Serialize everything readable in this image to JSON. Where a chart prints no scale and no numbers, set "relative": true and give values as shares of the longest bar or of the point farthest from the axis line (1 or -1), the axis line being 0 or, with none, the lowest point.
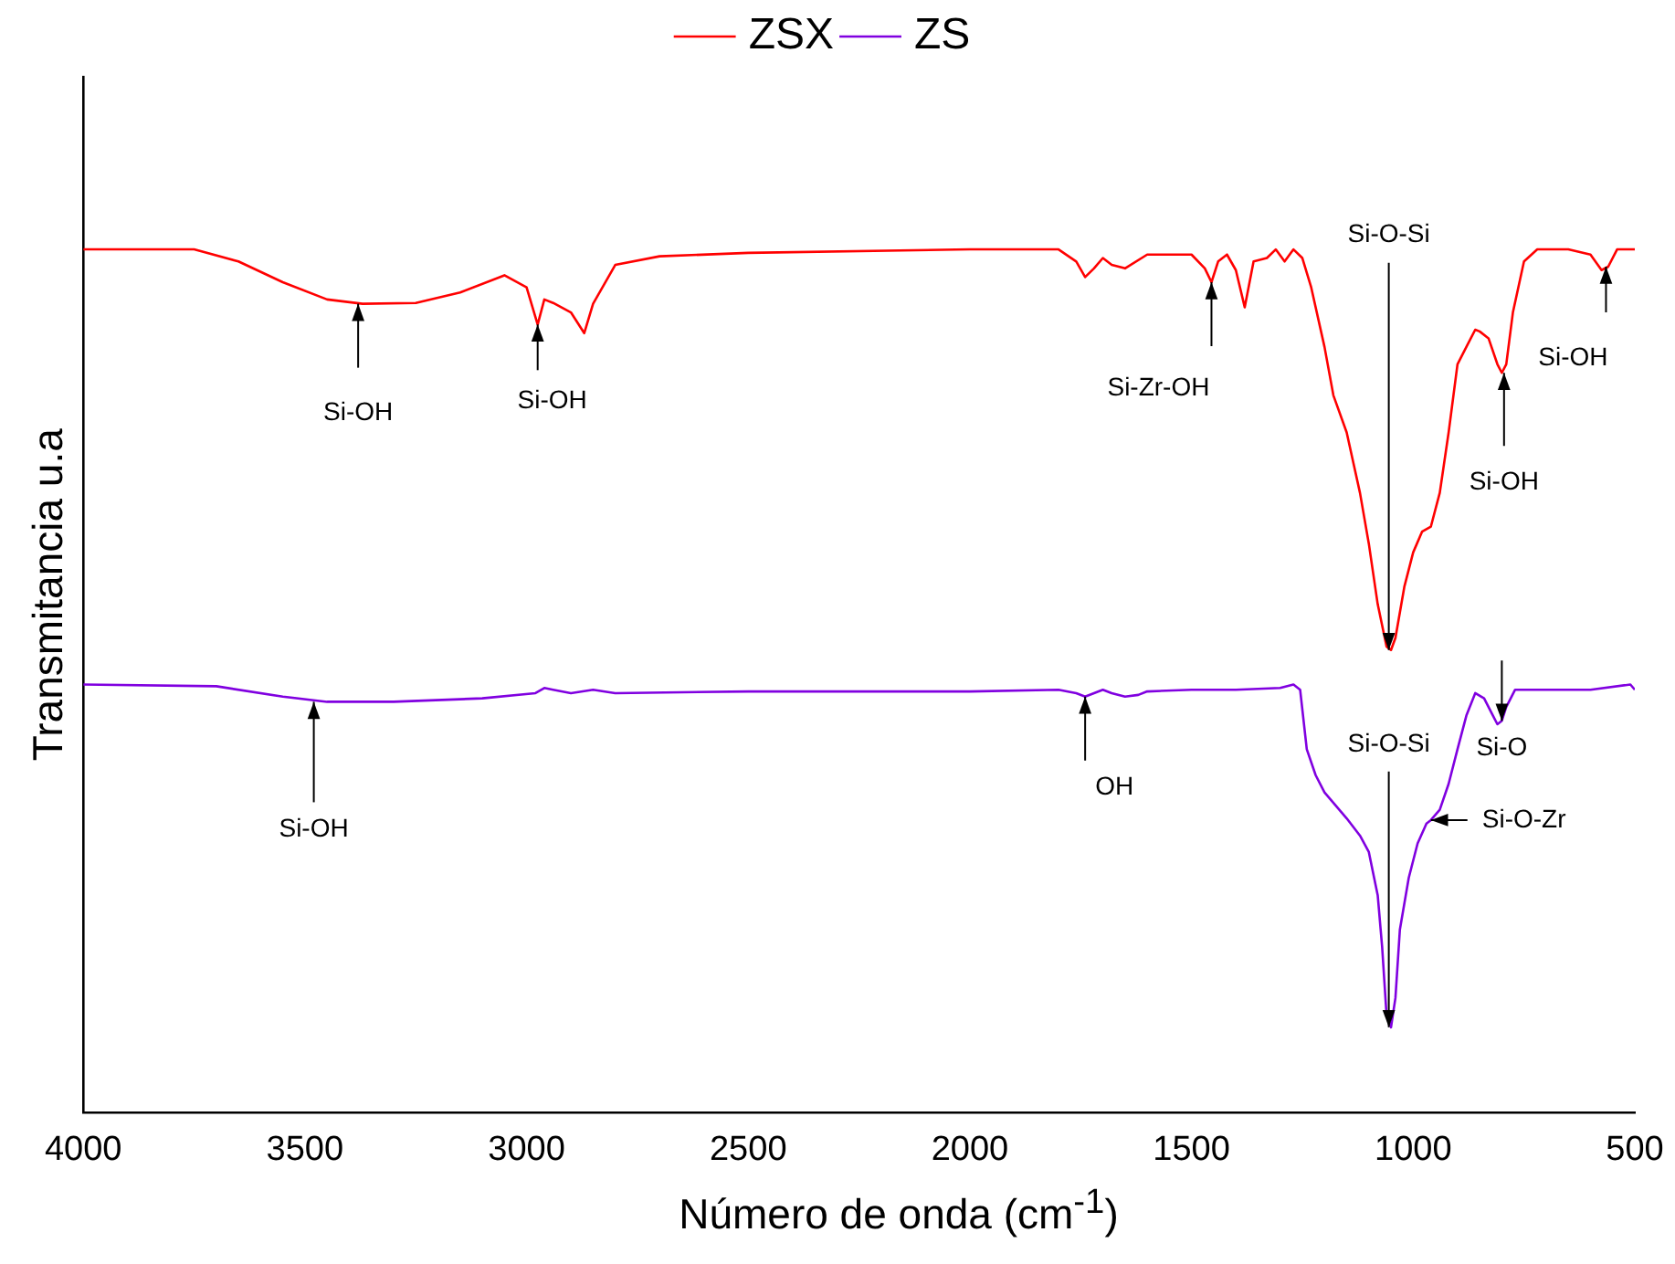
{
  "chart_data": {
    "type": "line",
    "xlabel": "Número de onda (cm$^{-1}$)",
    "ylabel": "Transmitancia u.a",
    "relative": true,
    "xlim": [
      4000,
      500
    ],
    "xticks": [
      4000,
      3500,
      3000,
      2500,
      2000,
      1500,
      1000,
      500
    ],
    "legend": "top",
    "grid": false,
    "marker": "none",
    "line_style": "solid",
    "series": [
      {
        "name": "ZSX",
        "color": "#ff0000",
        "x": [
          4000,
          3750,
          3650,
          3550,
          3450,
          3370,
          3250,
          3150,
          3050,
          3000,
          2975,
          2960,
          2940,
          2900,
          2870,
          2850,
          2800,
          2700,
          2500,
          2000,
          1800,
          1760,
          1740,
          1720,
          1700,
          1680,
          1650,
          1600,
          1500,
          1470,
          1455,
          1440,
          1420,
          1400,
          1380,
          1360,
          1330,
          1310,
          1290,
          1270,
          1250,
          1230,
          1200,
          1180,
          1150,
          1120,
          1100,
          1080,
          1060,
          1050,
          1040,
          1020,
          1000,
          980,
          960,
          940,
          920,
          900,
          880,
          860,
          850,
          830,
          810,
          800,
          790,
          775,
          750,
          720,
          650,
          600,
          575,
          560,
          540,
          500
        ],
        "values": [
          1.0,
          1.0,
          0.986,
          0.962,
          0.942,
          0.937,
          0.938,
          0.95,
          0.97,
          0.956,
          0.913,
          0.942,
          0.938,
          0.927,
          0.903,
          0.937,
          0.982,
          0.992,
          0.996,
          1.0,
          1.0,
          0.986,
          0.968,
          0.978,
          0.99,
          0.982,
          0.978,
          0.994,
          0.994,
          0.978,
          0.962,
          0.986,
          0.994,
          0.976,
          0.933,
          0.986,
          0.99,
          1.0,
          0.986,
          1.0,
          0.99,
          0.956,
          0.887,
          0.831,
          0.788,
          0.718,
          0.659,
          0.589,
          0.54,
          0.536,
          0.55,
          0.609,
          0.649,
          0.673,
          0.679,
          0.718,
          0.788,
          0.867,
          0.887,
          0.907,
          0.905,
          0.897,
          0.867,
          0.857,
          0.867,
          0.927,
          0.986,
          1.0,
          1.0,
          0.994,
          0.976,
          0.98,
          1.0,
          1.0
        ]
      },
      {
        "name": "ZS",
        "color": "#8000e0",
        "x": [
          4000,
          3700,
          3550,
          3450,
          3300,
          3100,
          2980,
          2960,
          2940,
          2900,
          2850,
          2800,
          2500,
          2000,
          1800,
          1760,
          1740,
          1720,
          1700,
          1680,
          1650,
          1620,
          1600,
          1500,
          1400,
          1300,
          1270,
          1255,
          1240,
          1220,
          1200,
          1150,
          1120,
          1100,
          1080,
          1070,
          1060,
          1050,
          1040,
          1030,
          1010,
          990,
          970,
          960,
          940,
          920,
          900,
          880,
          860,
          840,
          820,
          810,
          800,
          790,
          770,
          700,
          600,
          510,
          500
        ],
        "values": [
          0.496,
          0.494,
          0.482,
          0.476,
          0.476,
          0.48,
          0.486,
          0.492,
          0.49,
          0.486,
          0.49,
          0.486,
          0.488,
          0.488,
          0.49,
          0.486,
          0.482,
          0.486,
          0.49,
          0.486,
          0.482,
          0.484,
          0.488,
          0.49,
          0.49,
          0.492,
          0.496,
          0.49,
          0.421,
          0.391,
          0.371,
          0.341,
          0.321,
          0.302,
          0.252,
          0.192,
          0.113,
          0.099,
          0.133,
          0.212,
          0.272,
          0.312,
          0.335,
          0.339,
          0.351,
          0.381,
          0.421,
          0.46,
          0.486,
          0.48,
          0.46,
          0.45,
          0.454,
          0.47,
          0.49,
          0.49,
          0.49,
          0.496,
          0.49
        ]
      }
    ],
    "annotations": [
      {
        "text": "Si-OH",
        "x": 3380,
        "y": 0.937
      },
      {
        "text": "Si-OH",
        "x": 2975,
        "y": 0.913
      },
      {
        "text": "Si-Zr-OH",
        "x": 1455,
        "y": 0.962
      },
      {
        "text": "Si-O-Si",
        "x": 1055,
        "y": 0.536
      },
      {
        "text": "Si-OH",
        "x": 795,
        "y": 0.857
      },
      {
        "text": "Si-OH",
        "x": 565,
        "y": 0.98
      },
      {
        "text": "Si-OH",
        "x": 3480,
        "y": 0.476
      },
      {
        "text": "OH",
        "x": 1740,
        "y": 0.482
      },
      {
        "text": "Si-O-Si",
        "x": 1055,
        "y": 0.099
      },
      {
        "text": "Si-O",
        "x": 800,
        "y": 0.454
      },
      {
        "text": "Si-O-Zr",
        "x": 960,
        "y": 0.339
      }
    ]
  }
}
